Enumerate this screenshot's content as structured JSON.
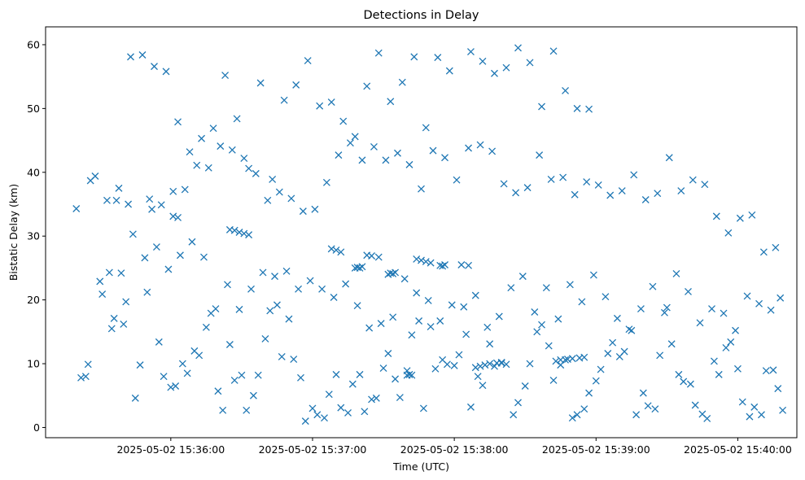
{
  "chart_data": {
    "type": "scatter",
    "title": "Detections in Delay",
    "xlabel": "Time (UTC)",
    "ylabel": "Bistatic Delay (km)",
    "marker": "x",
    "color": "#1f77b4",
    "grid": false,
    "legend": "none",
    "xlim": [
      "2025-05-02 15:35:07",
      "2025-05-02 15:40:25"
    ],
    "ylim": [
      -1.6,
      62.8
    ],
    "x_ticks": [
      "2025-05-02 15:36:00",
      "2025-05-02 15:37:00",
      "2025-05-02 15:38:00",
      "2025-05-02 15:39:00",
      "2025-05-02 15:40:00"
    ],
    "y_ticks": [
      0,
      10,
      20,
      30,
      40,
      50,
      60
    ],
    "series": [
      {
        "x": [
          "2025-05-02 15:35:20",
          "2025-05-02 15:35:28",
          "2025-05-02 15:35:33",
          "2025-05-02 15:35:38",
          "2025-05-02 15:35:43",
          "2025-05-02 15:35:48",
          "2025-05-02 15:35:53",
          "2025-05-02 15:35:58",
          "2025-05-02 15:36:03",
          "2025-05-02 15:36:08",
          "2025-05-02 15:36:13",
          "2025-05-02 15:36:18",
          "2025-05-02 15:36:23",
          "2025-05-02 15:36:28",
          "2025-05-02 15:36:33",
          "2025-05-02 15:36:38",
          "2025-05-02 15:36:43",
          "2025-05-02 15:36:48",
          "2025-05-02 15:36:53",
          "2025-05-02 15:36:58",
          "2025-05-02 15:37:03",
          "2025-05-02 15:37:08",
          "2025-05-02 15:37:13",
          "2025-05-02 15:37:18",
          "2025-05-02 15:37:23",
          "2025-05-02 15:37:28",
          "2025-05-02 15:37:33",
          "2025-05-02 15:37:38",
          "2025-05-02 15:37:43",
          "2025-05-02 15:37:48",
          "2025-05-02 15:37:53",
          "2025-05-02 15:37:58",
          "2025-05-02 15:38:07",
          "2025-05-02 15:38:12",
          "2025-05-02 15:38:17",
          "2025-05-02 15:38:22",
          "2025-05-02 15:38:27",
          "2025-05-02 15:38:32",
          "2025-05-02 15:38:37",
          "2025-05-02 15:38:42",
          "2025-05-02 15:38:47",
          "2025-05-02 15:38:52",
          "2025-05-02 15:38:57",
          "2025-05-02 15:35:22",
          "2025-05-02 15:35:25",
          "2025-05-02 15:35:30",
          "2025-05-02 15:35:34",
          "2025-05-02 15:35:36",
          "2025-05-02 15:35:40",
          "2025-05-02 15:35:45",
          "2025-05-02 15:35:47",
          "2025-05-02 15:35:50",
          "2025-05-02 15:35:55",
          "2025-05-02 15:35:57",
          "2025-05-02 15:36:00",
          "2025-05-02 15:36:02",
          "2025-05-02 15:36:05",
          "2025-05-02 15:36:07",
          "2025-05-02 15:36:10",
          "2025-05-02 15:36:12",
          "2025-05-02 15:36:15",
          "2025-05-02 15:36:17",
          "2025-05-02 15:36:20",
          "2025-05-02 15:36:22",
          "2025-05-02 15:36:25",
          "2025-05-02 15:36:27",
          "2025-05-02 15:36:30",
          "2025-05-02 15:36:32",
          "2025-05-02 15:36:35",
          "2025-05-02 15:36:37",
          "2025-05-02 15:36:40",
          "2025-05-02 15:36:42",
          "2025-05-02 15:36:45",
          "2025-05-02 15:36:47",
          "2025-05-02 15:36:50",
          "2025-05-02 15:36:52",
          "2025-05-02 15:36:55",
          "2025-05-02 15:36:57",
          "2025-05-02 15:37:00",
          "2025-05-02 15:37:02",
          "2025-05-02 15:37:05",
          "2025-05-02 15:37:07",
          "2025-05-02 15:37:10",
          "2025-05-02 15:37:12",
          "2025-05-02 15:37:15",
          "2025-05-02 15:37:17",
          "2025-05-02 15:37:20",
          "2025-05-02 15:37:22",
          "2025-05-02 15:37:25",
          "2025-05-02 15:37:27",
          "2025-05-02 15:37:30",
          "2025-05-02 15:37:32",
          "2025-05-02 15:37:35",
          "2025-05-02 15:37:37",
          "2025-05-02 15:37:40",
          "2025-05-02 15:37:42",
          "2025-05-02 15:37:45",
          "2025-05-02 15:37:47",
          "2025-05-02 15:37:50",
          "2025-05-02 15:37:52",
          "2025-05-02 15:37:55",
          "2025-05-02 15:37:57",
          "2025-05-02 15:38:00",
          "2025-05-02 15:38:02",
          "2025-05-02 15:38:05",
          "2025-05-02 15:38:07",
          "2025-05-02 15:38:10",
          "2025-05-02 15:38:12",
          "2025-05-02 15:38:15",
          "2025-05-02 15:38:17",
          "2025-05-02 15:38:20",
          "2025-05-02 15:38:22",
          "2025-05-02 15:38:25",
          "2025-05-02 15:38:27",
          "2025-05-02 15:38:30",
          "2025-05-02 15:38:32",
          "2025-05-02 15:38:35",
          "2025-05-02 15:38:37",
          "2025-05-02 15:38:40",
          "2025-05-02 15:38:42",
          "2025-05-02 15:38:45",
          "2025-05-02 15:38:47",
          "2025-05-02 15:38:50",
          "2025-05-02 15:38:52",
          "2025-05-02 15:38:55",
          "2025-05-02 15:38:57",
          "2025-05-02 15:39:00",
          "2025-05-02 15:39:02",
          "2025-05-02 15:39:05",
          "2025-05-02 15:39:07",
          "2025-05-02 15:39:10",
          "2025-05-02 15:39:12",
          "2025-05-02 15:39:15",
          "2025-05-02 15:39:17",
          "2025-05-02 15:39:20",
          "2025-05-02 15:39:22",
          "2025-05-02 15:39:25",
          "2025-05-02 15:39:27",
          "2025-05-02 15:39:30",
          "2025-05-02 15:39:32",
          "2025-05-02 15:39:35",
          "2025-05-02 15:39:37",
          "2025-05-02 15:39:40",
          "2025-05-02 15:39:42",
          "2025-05-02 15:39:45",
          "2025-05-02 15:39:47",
          "2025-05-02 15:39:50",
          "2025-05-02 15:39:52",
          "2025-05-02 15:39:55",
          "2025-05-02 15:39:57",
          "2025-05-02 15:40:00",
          "2025-05-02 15:40:02",
          "2025-05-02 15:40:05",
          "2025-05-02 15:40:07",
          "2025-05-02 15:40:10",
          "2025-05-02 15:40:12",
          "2025-05-02 15:40:15",
          "2025-05-02 15:40:17",
          "2025-05-02 15:40:19",
          "2025-05-02 15:35:24",
          "2025-05-02 15:35:31",
          "2025-05-02 15:35:39",
          "2025-05-02 15:35:44",
          "2025-05-02 15:35:51",
          "2025-05-02 15:35:56",
          "2025-05-02 15:36:01",
          "2025-05-02 15:36:06",
          "2025-05-02 15:36:11",
          "2025-05-02 15:36:16",
          "2025-05-02 15:36:21",
          "2025-05-02 15:36:26",
          "2025-05-02 15:36:31",
          "2025-05-02 15:36:36",
          "2025-05-02 15:36:41",
          "2025-05-02 15:36:46",
          "2025-05-02 15:36:51",
          "2025-05-02 15:36:56",
          "2025-05-02 15:37:01",
          "2025-05-02 15:37:06",
          "2025-05-02 15:37:11",
          "2025-05-02 15:37:16",
          "2025-05-02 15:37:21",
          "2025-05-02 15:37:26",
          "2025-05-02 15:37:31",
          "2025-05-02 15:37:36",
          "2025-05-02 15:37:41",
          "2025-05-02 15:37:46",
          "2025-05-02 15:37:51",
          "2025-05-02 15:37:56",
          "2025-05-02 15:38:01",
          "2025-05-02 15:38:06",
          "2025-05-02 15:38:11",
          "2025-05-02 15:38:16",
          "2025-05-02 15:38:21",
          "2025-05-02 15:38:26",
          "2025-05-02 15:38:31",
          "2025-05-02 15:38:36",
          "2025-05-02 15:38:41",
          "2025-05-02 15:38:46",
          "2025-05-02 15:38:51",
          "2025-05-02 15:38:56",
          "2025-05-02 15:39:01",
          "2025-05-02 15:39:06",
          "2025-05-02 15:39:11",
          "2025-05-02 15:39:16",
          "2025-05-02 15:39:21",
          "2025-05-02 15:39:26",
          "2025-05-02 15:39:31",
          "2025-05-02 15:39:36",
          "2025-05-02 15:39:41",
          "2025-05-02 15:39:46",
          "2025-05-02 15:39:51",
          "2025-05-02 15:39:56",
          "2025-05-02 15:40:01",
          "2025-05-02 15:40:06",
          "2025-05-02 15:40:11",
          "2025-05-02 15:40:16",
          "2025-05-02 15:35:26",
          "2025-05-02 15:35:35",
          "2025-05-02 15:35:41",
          "2025-05-02 15:35:49",
          "2025-05-02 15:35:54",
          "2025-05-02 15:35:59",
          "2025-05-02 15:36:04",
          "2025-05-02 15:36:09",
          "2025-05-02 15:36:14",
          "2025-05-02 15:36:19",
          "2025-05-02 15:36:24",
          "2025-05-02 15:36:29",
          "2025-05-02 15:36:34",
          "2025-05-02 15:36:39",
          "2025-05-02 15:36:44",
          "2025-05-02 15:36:49",
          "2025-05-02 15:36:54",
          "2025-05-02 15:36:59",
          "2025-05-02 15:37:04",
          "2025-05-02 15:37:09",
          "2025-05-02 15:37:14",
          "2025-05-02 15:37:19",
          "2025-05-02 15:37:24",
          "2025-05-02 15:37:29",
          "2025-05-02 15:37:34",
          "2025-05-02 15:37:39",
          "2025-05-02 15:37:44",
          "2025-05-02 15:37:49",
          "2025-05-02 15:37:54",
          "2025-05-02 15:37:59",
          "2025-05-02 15:38:04",
          "2025-05-02 15:38:09",
          "2025-05-02 15:38:14",
          "2025-05-02 15:38:19",
          "2025-05-02 15:38:24",
          "2025-05-02 15:38:29",
          "2025-05-02 15:38:34",
          "2025-05-02 15:38:39",
          "2025-05-02 15:38:44",
          "2025-05-02 15:38:49",
          "2025-05-02 15:38:54",
          "2025-05-02 15:38:59",
          "2025-05-02 15:39:04",
          "2025-05-02 15:39:09",
          "2025-05-02 15:39:14",
          "2025-05-02 15:39:19",
          "2025-05-02 15:39:24",
          "2025-05-02 15:39:29",
          "2025-05-02 15:39:34",
          "2025-05-02 15:39:39",
          "2025-05-02 15:39:44",
          "2025-05-02 15:39:49",
          "2025-05-02 15:39:54",
          "2025-05-02 15:39:59",
          "2025-05-02 15:40:04",
          "2025-05-02 15:40:09",
          "2025-05-02 15:40:14",
          "2025-05-02 15:40:18",
          "2025-05-02 15:38:09",
          "2025-05-02 15:38:11",
          "2025-05-02 15:38:13",
          "2025-05-02 15:38:15",
          "2025-05-02 15:38:18",
          "2025-05-02 15:38:20",
          "2025-05-02 15:38:43",
          "2025-05-02 15:38:45",
          "2025-05-02 15:38:48",
          "2025-05-02 15:38:50",
          "2025-05-02 15:38:53",
          "2025-05-02 15:38:55",
          "2025-05-02 15:37:40",
          "2025-05-02 15:37:41",
          "2025-05-02 15:37:42",
          "2025-05-02 15:37:18",
          "2025-05-02 15:37:19",
          "2025-05-02 15:37:20",
          "2025-05-02 15:37:21",
          "2025-05-02 15:37:32",
          "2025-05-02 15:37:33",
          "2025-05-02 15:37:34",
          "2025-05-02 15:37:35",
          "2025-05-02 15:37:54",
          "2025-05-02 15:37:55",
          "2025-05-02 15:37:56",
          "2025-05-02 15:35:37",
          "2025-05-02 15:35:42",
          "2025-05-02 15:35:52",
          "2025-05-02 15:36:01",
          "2025-05-02 15:36:03",
          "2025-05-02 15:36:25",
          "2025-05-02 15:36:27",
          "2025-05-02 15:36:29",
          "2025-05-02 15:36:31",
          "2025-05-02 15:36:33",
          "2025-05-02 15:37:08",
          "2025-05-02 15:37:10",
          "2025-05-02 15:37:12",
          "2025-05-02 15:37:23",
          "2025-05-02 15:37:25",
          "2025-05-02 15:37:28",
          "2025-05-02 15:37:44",
          "2025-05-02 15:37:46",
          "2025-05-02 15:37:48",
          "2025-05-02 15:37:50",
          "2025-05-02 15:38:03",
          "2025-05-02 15:38:06"
        ],
        "y": [
          34.3,
          39.4,
          35.6,
          37.5,
          58.1,
          58.4,
          56.6,
          55.8,
          47.9,
          43.2,
          45.3,
          46.9,
          55.2,
          48.4,
          40.6,
          54.0,
          38.9,
          51.3,
          53.7,
          57.5,
          50.4,
          51.0,
          48.0,
          45.6,
          53.5,
          58.7,
          51.1,
          54.1,
          58.1,
          47.0,
          58.0,
          55.9,
          58.9,
          57.4,
          55.5,
          56.4,
          59.5,
          57.2,
          50.3,
          59.0,
          52.8,
          50.0,
          49.9,
          7.8,
          9.9,
          22.9,
          24.3,
          17.1,
          16.2,
          4.6,
          9.8,
          21.2,
          13.4,
          8.0,
          6.3,
          6.5,
          10.0,
          8.5,
          12.0,
          11.3,
          15.7,
          17.9,
          5.7,
          2.7,
          13.0,
          7.4,
          8.2,
          2.7,
          5.0,
          8.2,
          13.9,
          18.3,
          19.2,
          11.1,
          17.0,
          10.7,
          7.8,
          1.0,
          3.0,
          2.0,
          1.5,
          5.2,
          8.3,
          3.1,
          2.3,
          6.8,
          8.3,
          2.5,
          4.4,
          4.6,
          9.3,
          11.6,
          7.6,
          4.7,
          8.9,
          14.5,
          16.7,
          3.0,
          15.8,
          9.2,
          10.6,
          9.9,
          9.7,
          11.4,
          14.6,
          3.2,
          8.0,
          6.6,
          13.1,
          9.6,
          10.1,
          9.9,
          2.0,
          3.9,
          6.5,
          10.0,
          15.0,
          16.1,
          12.8,
          7.4,
          9.8,
          10.6,
          1.5,
          2.0,
          2.9,
          5.4,
          7.3,
          9.1,
          11.6,
          13.3,
          11.1,
          11.9,
          15.2,
          2.0,
          5.4,
          3.4,
          2.9,
          11.3,
          18.8,
          13.1,
          8.3,
          7.2,
          6.8,
          3.5,
          2.1,
          1.4,
          10.4,
          8.3,
          12.5,
          13.4,
          9.2,
          4.0,
          1.7,
          3.2,
          2.0,
          8.9,
          9.0,
          6.1,
          2.7,
          8.0,
          20.9,
          24.2,
          30.3,
          35.8,
          34.9,
          37.0,
          37.3,
          41.1,
          40.7,
          44.1,
          43.5,
          42.2,
          39.8,
          35.6,
          36.9,
          35.9,
          33.9,
          34.2,
          38.4,
          42.7,
          44.6,
          41.9,
          44.0,
          41.9,
          43.0,
          41.2,
          37.4,
          43.4,
          42.3,
          38.8,
          43.8,
          44.3,
          43.3,
          38.2,
          36.8,
          37.6,
          42.7,
          38.9,
          39.2,
          36.5,
          38.5,
          38.0,
          36.4,
          37.1,
          39.6,
          35.7,
          36.7,
          42.3,
          37.1,
          38.8,
          38.1,
          33.1,
          30.5,
          32.8,
          33.3,
          27.5,
          28.2,
          38.7,
          15.5,
          19.7,
          26.6,
          28.3,
          24.8,
          27.0,
          29.1,
          26.7,
          18.6,
          22.4,
          18.5,
          21.7,
          24.3,
          23.7,
          24.5,
          21.7,
          23.0,
          21.7,
          20.4,
          22.5,
          19.1,
          15.6,
          16.3,
          17.3,
          23.3,
          21.1,
          19.9,
          16.7,
          19.2,
          18.9,
          20.7,
          15.7,
          17.4,
          21.9,
          23.7,
          18.1,
          21.9,
          17.0,
          22.4,
          19.7,
          23.9,
          20.5,
          17.1,
          15.4,
          18.6,
          22.1,
          18.0,
          24.1,
          21.3,
          16.4,
          18.6,
          17.9,
          15.2,
          20.6,
          19.4,
          18.4,
          20.3,
          9.4,
          9.6,
          9.8,
          10.0,
          10.1,
          10.2,
          10.4,
          10.6,
          10.7,
          10.8,
          10.9,
          11.0,
          8.2,
          8.3,
          8.2,
          25.0,
          25.1,
          25.0,
          25.2,
          24.0,
          24.2,
          24.1,
          24.3,
          25.4,
          25.3,
          25.5,
          35.6,
          35.0,
          34.2,
          33.1,
          32.9,
          31.0,
          30.9,
          30.6,
          30.4,
          30.2,
          28.0,
          27.8,
          27.5,
          27.0,
          26.9,
          26.7,
          26.4,
          26.2,
          26.0,
          25.8,
          25.5,
          25.4
        ]
      }
    ]
  }
}
